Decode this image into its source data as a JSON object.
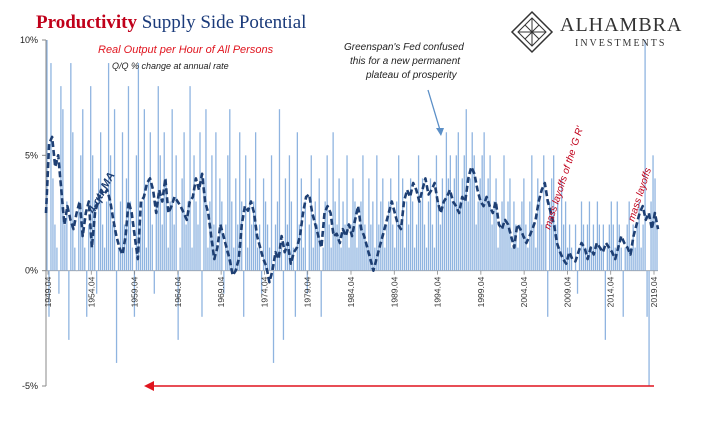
{
  "header": {
    "title_bold": "Productivity",
    "title_rest": " Supply Side Potential",
    "subtitle": "Real Output per Hour of All Persons",
    "subtitle2": "Q/Q % change at annual rate"
  },
  "logo": {
    "name": "ALHAMBRA",
    "sub": "INVESTMENTS"
  },
  "note": [
    "Greenspan's Fed confused",
    "this for a new permanent",
    "plateau of prosperity"
  ],
  "annotations": {
    "recession1": "mass layoffs of the 'G R'",
    "recession2": "mass layoffs",
    "ma_label": "4-qtr MA"
  },
  "colors": {
    "bars": "#8fb4e0",
    "ma_line": "#1e3f73",
    "arrow_red": "#e0141e",
    "title_red": "#c0001a",
    "title_blue": "#1a3a7a"
  },
  "chart_data": {
    "type": "bar",
    "title": "Productivity Supply Side Potential",
    "ylim": [
      -5,
      10
    ],
    "yticks": [
      "10%",
      "5%",
      "0%",
      "-5%"
    ],
    "ytick_values": [
      10,
      5,
      0,
      -5
    ],
    "x_tick_labels": [
      "1949.04",
      "1954.04",
      "1959.04",
      "1964.04",
      "1969.04",
      "1974.04",
      "1979.04",
      "1984.04",
      "1989.04",
      "1994.04",
      "1999.04",
      "2004.04",
      "2009.04",
      "2014.04",
      "2019.04"
    ],
    "x_range": [
      "1949.04",
      "2020.04"
    ],
    "series": [
      {
        "name": "Real Output per Hour of All Persons",
        "kind": "bar",
        "values": [
          10,
          -2,
          9,
          4,
          2,
          1,
          -1,
          8,
          7,
          2,
          3,
          -3,
          9,
          6,
          1,
          0,
          3,
          5,
          7,
          1,
          -2,
          2,
          8,
          5,
          3,
          -1,
          4,
          6,
          2,
          1,
          3,
          9,
          5,
          2,
          7,
          -4,
          1,
          3,
          6,
          2,
          4,
          8,
          3,
          1,
          -2,
          5,
          9,
          2,
          3,
          7,
          1,
          4,
          6,
          2,
          -1,
          3,
          8,
          5,
          2,
          6,
          4,
          1,
          3,
          7,
          2,
          5,
          -3,
          1,
          4,
          6,
          2,
          3,
          8,
          1,
          5,
          3,
          2,
          6,
          -2,
          4,
          7,
          1,
          3,
          5,
          2,
          6,
          1,
          4,
          3,
          -1,
          2,
          5,
          7,
          3,
          1,
          4,
          2,
          6,
          3,
          -2,
          5,
          1,
          4,
          2,
          3,
          6,
          1,
          2,
          -1,
          4,
          3,
          2,
          1,
          5,
          -4,
          2,
          3,
          7,
          1,
          -3,
          4,
          2,
          5,
          3,
          1,
          -2,
          6,
          2,
          4,
          1,
          3,
          -1,
          2,
          5,
          1,
          3,
          2,
          4,
          -2,
          1,
          3,
          5,
          2,
          1,
          6,
          3,
          2,
          4,
          1,
          3,
          2,
          5,
          1,
          2,
          4,
          3,
          1,
          2,
          3,
          5,
          2,
          1,
          4,
          2,
          3,
          1,
          5,
          2,
          3,
          4,
          1,
          2,
          3,
          4,
          2,
          1,
          3,
          5,
          2,
          4,
          1,
          3,
          2,
          4,
          3,
          1,
          2,
          5,
          3,
          4,
          2,
          1,
          3,
          4,
          2,
          1,
          5,
          3,
          2,
          4,
          3,
          6,
          4,
          5,
          3,
          4,
          5,
          6,
          3,
          4,
          5,
          7,
          3,
          4,
          6,
          5,
          2,
          3,
          4,
          5,
          6,
          3,
          4,
          5,
          2,
          3,
          4,
          1,
          2,
          3,
          5,
          2,
          3,
          4,
          1,
          3,
          2,
          1,
          2,
          3,
          4,
          2,
          1,
          3,
          5,
          2,
          1,
          4,
          3,
          2,
          5,
          2,
          -2,
          3,
          4,
          5,
          2,
          3,
          1,
          4,
          2,
          3,
          1,
          2,
          1,
          0,
          2,
          -1,
          1,
          3,
          2,
          1,
          2,
          3,
          1,
          2,
          1,
          3,
          2,
          1,
          2,
          -3,
          1,
          2,
          3,
          2,
          1,
          3,
          2,
          1,
          -2,
          1,
          2,
          3,
          1,
          2,
          1,
          2,
          3,
          1,
          2,
          10,
          -2,
          -5,
          3,
          5,
          4,
          2
        ]
      },
      {
        "name": "4-qtr MA",
        "kind": "line",
        "values": [
          2.5,
          5.5,
          5.8,
          4.5,
          5,
          3.5,
          2,
          2.8,
          2.2,
          1.8,
          2.5,
          3,
          1.5,
          2.5,
          3,
          1,
          2.5,
          3,
          3.5,
          3.3,
          3.5,
          3,
          2.2,
          1.5,
          1,
          0.7,
          1.5,
          3,
          2.5,
          1.5,
          0.5,
          3,
          3.2,
          3.8,
          4,
          3.5,
          2.5,
          3.5,
          3,
          4,
          2.5,
          2.8,
          3.2,
          3,
          2.8,
          2.5,
          2.2,
          3,
          3.2,
          4,
          3.5,
          4.2,
          3,
          2.5,
          1.5,
          0.5,
          1,
          2,
          1.5,
          1,
          0.5,
          -0.2,
          0,
          0.5,
          2,
          2.8,
          2.6,
          3,
          2.5,
          1.5,
          1,
          0.5,
          0.2,
          -0.5,
          0,
          0.8,
          0.5,
          1.5,
          0.8,
          1.2,
          0.3,
          0.8,
          1,
          1.5,
          2.5,
          3.2,
          3.3,
          2.5,
          2,
          1.5,
          1,
          2.5,
          2.8,
          2.5,
          1.5,
          1.6,
          1.2,
          1.8,
          1.5,
          2,
          1.5,
          2.2,
          2.8,
          1.8,
          1.5,
          1,
          0.5,
          0,
          0.5,
          1,
          1.5,
          2,
          2.5,
          3,
          2.5,
          2,
          1.8,
          3,
          3.5,
          3.2,
          3.8,
          3.5,
          3,
          3.5,
          4,
          3.3,
          3.5,
          3.8,
          3,
          2.5,
          3,
          3.2,
          3.5,
          3,
          2.8,
          2.5,
          3.2,
          3,
          4,
          4.5,
          4.2,
          3.5,
          3,
          2.8,
          3.2,
          2.8,
          2.5,
          3,
          2,
          1.8,
          2.2,
          2,
          1.5,
          1,
          2,
          1.8,
          1.5,
          1.2,
          1.5,
          1.8,
          2.2,
          3,
          3.5,
          3.8,
          3,
          2.5,
          2,
          1.2,
          0.8,
          0.5,
          0.3,
          0.8,
          0.5,
          0.4,
          0.8,
          1.2,
          1,
          0.5,
          1,
          0.7,
          1.2,
          1,
          0.8,
          1.2,
          1,
          0.8,
          0.5,
          1,
          1.5,
          1.2,
          1,
          0.7,
          1.5,
          2,
          2.5,
          2.8,
          2.2,
          2.5,
          1.8,
          2.5,
          1.8
        ]
      }
    ]
  }
}
